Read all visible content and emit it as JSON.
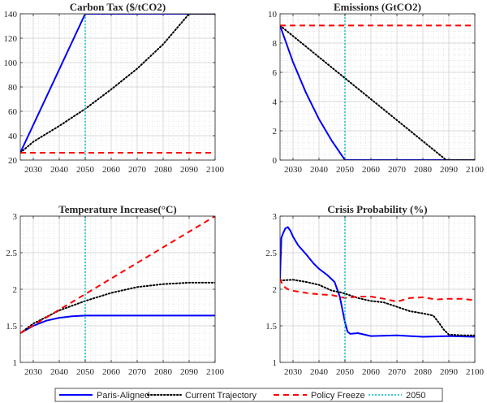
{
  "chart_data": [
    {
      "type": "line",
      "title": "Carbon Tax ($/tCO2)",
      "xlim": [
        2025,
        2100
      ],
      "ylim": [
        20,
        140
      ],
      "xticks": [
        2030,
        2040,
        2050,
        2060,
        2070,
        2080,
        2090,
        2100
      ],
      "yticks": [
        20,
        40,
        60,
        80,
        100,
        120,
        140
      ],
      "grid": true,
      "series": [
        {
          "name": "Paris-Aligned",
          "x": [
            2025,
            2050,
            2100
          ],
          "y": [
            26,
            140,
            140
          ]
        },
        {
          "name": "Current Trajectory",
          "x": [
            2025,
            2030,
            2040,
            2050,
            2060,
            2070,
            2080,
            2090,
            2100
          ],
          "y": [
            26,
            35,
            48,
            62,
            78,
            95,
            115,
            140,
            140
          ]
        },
        {
          "name": "Policy Freeze",
          "x": [
            2025,
            2100
          ],
          "y": [
            26,
            26
          ]
        }
      ],
      "marker_x": 2050
    },
    {
      "type": "line",
      "title": "Emissions (GtCO2)",
      "xlim": [
        2025,
        2100
      ],
      "ylim": [
        0,
        10
      ],
      "xticks": [
        2030,
        2040,
        2050,
        2060,
        2070,
        2080,
        2090,
        2100
      ],
      "yticks": [
        0,
        2,
        4,
        6,
        8,
        10
      ],
      "grid": true,
      "series": [
        {
          "name": "Paris-Aligned",
          "x": [
            2025,
            2030,
            2035,
            2040,
            2045,
            2050,
            2100
          ],
          "y": [
            9.2,
            6.7,
            4.6,
            2.8,
            1.3,
            0,
            0
          ]
        },
        {
          "name": "Current Trajectory",
          "x": [
            2025,
            2050,
            2089,
            2100
          ],
          "y": [
            9.2,
            5.6,
            0,
            0
          ]
        },
        {
          "name": "Policy Freeze",
          "x": [
            2025,
            2100
          ],
          "y": [
            9.2,
            9.2
          ]
        }
      ],
      "marker_x": 2050
    },
    {
      "type": "line",
      "title": "Temperature Increase(°C)",
      "xlim": [
        2025,
        2100
      ],
      "ylim": [
        1,
        3
      ],
      "xticks": [
        2030,
        2040,
        2050,
        2060,
        2070,
        2080,
        2090,
        2100
      ],
      "yticks": [
        1,
        1.5,
        2,
        2.5,
        3
      ],
      "grid": true,
      "series": [
        {
          "name": "Paris-Aligned",
          "x": [
            2025,
            2030,
            2035,
            2040,
            2045,
            2050,
            2100
          ],
          "y": [
            1.4,
            1.5,
            1.57,
            1.61,
            1.63,
            1.64,
            1.64
          ]
        },
        {
          "name": "Current Trajectory",
          "x": [
            2025,
            2030,
            2040,
            2050,
            2060,
            2070,
            2080,
            2090,
            2100
          ],
          "y": [
            1.4,
            1.53,
            1.71,
            1.84,
            1.95,
            2.03,
            2.07,
            2.09,
            2.09
          ]
        },
        {
          "name": "Policy Freeze",
          "x": [
            2025,
            2100
          ],
          "y": [
            1.4,
            3.0
          ]
        }
      ],
      "marker_x": 2050
    },
    {
      "type": "line",
      "title": "Crisis Probability (%)",
      "xlim": [
        2025,
        2100
      ],
      "ylim": [
        1,
        3
      ],
      "xticks": [
        2030,
        2040,
        2050,
        2060,
        2070,
        2080,
        2090,
        2100
      ],
      "yticks": [
        1,
        1.5,
        2,
        2.5,
        3
      ],
      "grid": true,
      "series": [
        {
          "name": "Paris-Aligned",
          "x": [
            2025,
            2025.5,
            2026,
            2027,
            2028,
            2029,
            2030,
            2032,
            2035,
            2038,
            2040,
            2043,
            2046,
            2048,
            2050,
            2051,
            2052,
            2055,
            2060,
            2070,
            2080,
            2090,
            2100
          ],
          "y": [
            2.15,
            2.7,
            2.75,
            2.83,
            2.85,
            2.8,
            2.72,
            2.6,
            2.48,
            2.35,
            2.28,
            2.2,
            2.1,
            1.9,
            1.55,
            1.42,
            1.39,
            1.4,
            1.36,
            1.37,
            1.35,
            1.36,
            1.35
          ]
        },
        {
          "name": "Current Trajectory",
          "x": [
            2025,
            2030,
            2035,
            2040,
            2045,
            2048,
            2050,
            2055,
            2060,
            2065,
            2070,
            2075,
            2080,
            2084,
            2086,
            2088,
            2090,
            2095,
            2100
          ],
          "y": [
            2.12,
            2.13,
            2.1,
            2.06,
            1.98,
            1.96,
            1.94,
            1.88,
            1.84,
            1.82,
            1.76,
            1.7,
            1.67,
            1.64,
            1.55,
            1.45,
            1.38,
            1.37,
            1.37
          ]
        },
        {
          "name": "Policy Freeze",
          "x": [
            2025,
            2026,
            2028,
            2030,
            2035,
            2040,
            2045,
            2050,
            2055,
            2060,
            2065,
            2070,
            2075,
            2080,
            2085,
            2090,
            2095,
            2100
          ],
          "y": [
            2.15,
            2.05,
            2.0,
            1.98,
            1.95,
            1.93,
            1.92,
            1.88,
            1.9,
            1.9,
            1.87,
            1.83,
            1.88,
            1.89,
            1.86,
            1.87,
            1.87,
            1.85
          ]
        }
      ],
      "marker_x": 2050
    }
  ],
  "legend": {
    "placement": "bottom",
    "entries": [
      {
        "name": "Paris-Aligned",
        "color": "#0000ff",
        "style": "solid"
      },
      {
        "name": "Current Trajectory",
        "color": "#000000",
        "style": "dotted"
      },
      {
        "name": "Policy Freeze",
        "color": "#ff0000",
        "style": "dashed"
      },
      {
        "name": "2050",
        "color": "#00bfbf",
        "style": "dotted"
      }
    ]
  },
  "colors": {
    "paris": "#0000ff",
    "current": "#000000",
    "freeze": "#ff0000",
    "marker": "#00bfbf",
    "grid": "#d9d9d9",
    "axis": "#262626"
  }
}
